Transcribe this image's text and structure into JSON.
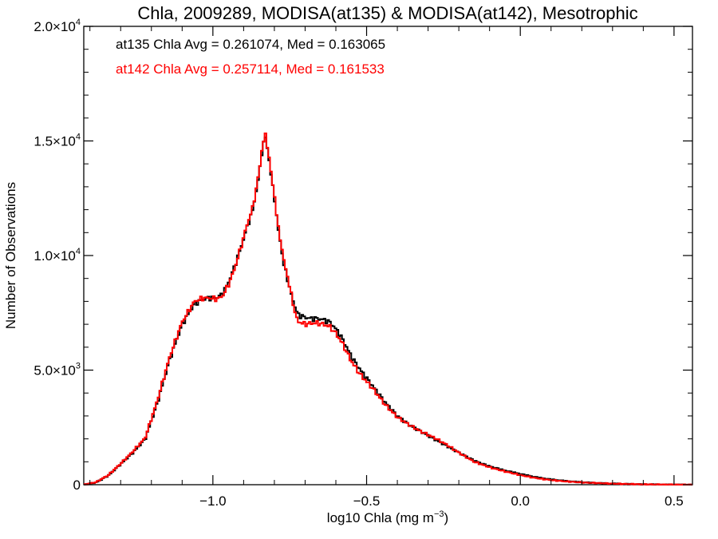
{
  "chart_data": {
    "type": "line",
    "step": true,
    "title": "Chla, 2009289, MODISA(at135) & MODISA(at142), Mesotrophic",
    "xlabel": {
      "main": "log10 Chla (mg m",
      "sup": "−3",
      "end": ")"
    },
    "ylabel": "Number of Observations",
    "xlim": [
      -1.42,
      0.56
    ],
    "ylim": [
      0,
      20000
    ],
    "x_ticks": [
      {
        "value": -1.0,
        "label": "−1.0"
      },
      {
        "value": -0.5,
        "label": "−0.5"
      },
      {
        "value": 0.0,
        "label": "0.0"
      },
      {
        "value": 0.5,
        "label": "0.5"
      }
    ],
    "y_ticks": [
      {
        "value": 0,
        "mant": "0",
        "exp": ""
      },
      {
        "value": 5000,
        "mant": "5.0×10",
        "exp": "3"
      },
      {
        "value": 10000,
        "mant": "1.0×10",
        "exp": "4"
      },
      {
        "value": 15000,
        "mant": "1.5×10",
        "exp": "4"
      },
      {
        "value": 20000,
        "mant": "2.0×10",
        "exp": "4"
      }
    ],
    "annotations": [
      {
        "text": "at135 Chla Avg = 0.261074, Med = 0.163065",
        "color": "#000000"
      },
      {
        "text": "at142 Chla Avg = 0.257114, Med = 0.161533",
        "color": "#ff0000"
      }
    ],
    "grid": false,
    "series": [
      {
        "color": "#000000",
        "x": [
          -1.42,
          -1.38,
          -1.34,
          -1.3,
          -1.26,
          -1.22,
          -1.18,
          -1.14,
          -1.1,
          -1.06,
          -1.03,
          -1.01,
          -0.99,
          -0.97,
          -0.95,
          -0.93,
          -0.91,
          -0.89,
          -0.87,
          -0.85,
          -0.84,
          -0.83,
          -0.82,
          -0.81,
          -0.8,
          -0.79,
          -0.78,
          -0.77,
          -0.76,
          -0.75,
          -0.74,
          -0.73,
          -0.72,
          -0.7,
          -0.68,
          -0.66,
          -0.64,
          -0.62,
          -0.6,
          -0.58,
          -0.55,
          -0.52,
          -0.48,
          -0.44,
          -0.4,
          -0.36,
          -0.32,
          -0.28,
          -0.24,
          -0.2,
          -0.15,
          -0.1,
          -0.05,
          0.0,
          0.05,
          0.1,
          0.15,
          0.2,
          0.25,
          0.3,
          0.35,
          0.4,
          0.45,
          0.5,
          0.55
        ],
        "values": [
          0,
          100,
          400,
          900,
          1400,
          2000,
          3600,
          5500,
          7000,
          7900,
          8100,
          8150,
          8150,
          8300,
          8800,
          9500,
          10300,
          11200,
          12000,
          13500,
          14600,
          15200,
          14500,
          13400,
          12600,
          11300,
          10600,
          9600,
          9200,
          8500,
          8100,
          7600,
          7400,
          7300,
          7250,
          7250,
          7200,
          7100,
          6800,
          6400,
          5600,
          5000,
          4300,
          3600,
          3000,
          2600,
          2300,
          2000,
          1700,
          1400,
          1050,
          800,
          620,
          470,
          330,
          230,
          160,
          110,
          75,
          50,
          30,
          18,
          10,
          5,
          0
        ]
      },
      {
        "color": "#ff0000",
        "x": [
          -1.42,
          -1.38,
          -1.34,
          -1.3,
          -1.26,
          -1.22,
          -1.18,
          -1.14,
          -1.1,
          -1.06,
          -1.03,
          -1.01,
          -0.99,
          -0.97,
          -0.95,
          -0.93,
          -0.91,
          -0.89,
          -0.87,
          -0.85,
          -0.84,
          -0.83,
          -0.82,
          -0.81,
          -0.8,
          -0.79,
          -0.78,
          -0.77,
          -0.76,
          -0.75,
          -0.74,
          -0.73,
          -0.72,
          -0.7,
          -0.68,
          -0.66,
          -0.64,
          -0.62,
          -0.6,
          -0.58,
          -0.55,
          -0.52,
          -0.48,
          -0.44,
          -0.4,
          -0.36,
          -0.32,
          -0.28,
          -0.24,
          -0.2,
          -0.15,
          -0.1,
          -0.05,
          0.0,
          0.05,
          0.1,
          0.15,
          0.2,
          0.25,
          0.3,
          0.35,
          0.4,
          0.45,
          0.5,
          0.55
        ],
        "values": [
          0,
          110,
          420,
          920,
          1450,
          2050,
          3700,
          5600,
          7100,
          8000,
          8150,
          8150,
          8100,
          8200,
          8700,
          9400,
          10300,
          11300,
          12100,
          13600,
          14700,
          15300,
          14600,
          13500,
          12700,
          11400,
          10700,
          9800,
          9300,
          8600,
          8000,
          7300,
          7100,
          7000,
          7050,
          7050,
          7000,
          6900,
          6600,
          6200,
          5400,
          4800,
          4200,
          3500,
          2950,
          2600,
          2300,
          2050,
          1750,
          1400,
          1000,
          760,
          580,
          420,
          290,
          200,
          140,
          100,
          70,
          45,
          28,
          16,
          9,
          4,
          0
        ]
      }
    ]
  }
}
